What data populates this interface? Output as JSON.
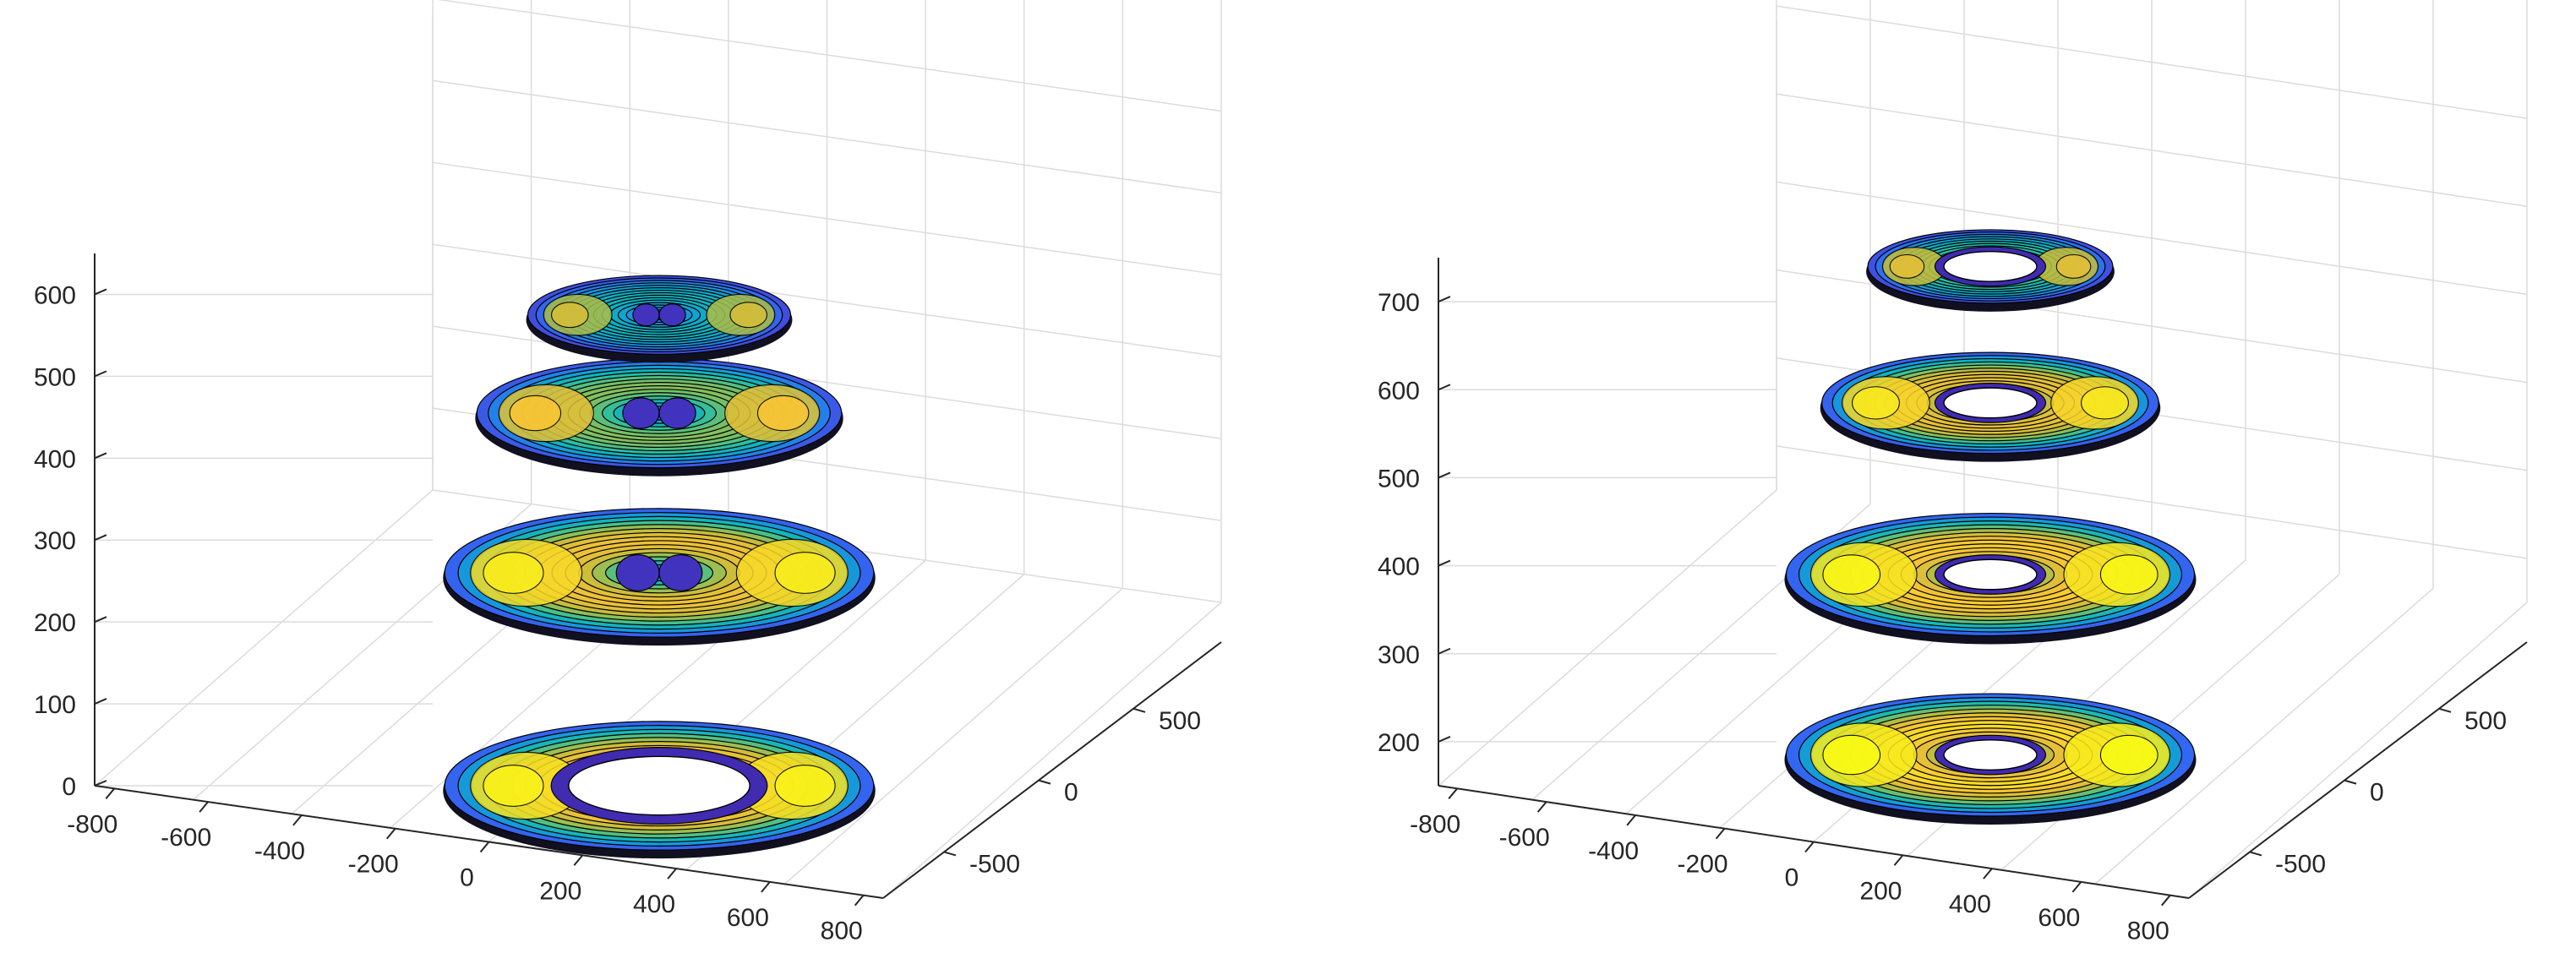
{
  "figure": {
    "background": "#ffffff",
    "colormap": "parula",
    "colors": {
      "contour_line": "#000000",
      "axis_line": "#262626",
      "grid_line": "#dcdcdc",
      "parula_stops": [
        "#3e26a8",
        "#4743d8",
        "#2f6cf5",
        "#1895dc",
        "#0ab0c6",
        "#2dbf9f",
        "#7cbf63",
        "#c8bc3a",
        "#f7c237",
        "#f9fb15"
      ]
    }
  },
  "chart_data": [
    {
      "type": "contour3d",
      "panel": "left",
      "grid": true,
      "xlim": [
        -800,
        800
      ],
      "ylim": [
        -800,
        800
      ],
      "zlim": [
        0,
        650
      ],
      "x_ticks": [
        "-800",
        "-600",
        "-400",
        "-200",
        "0",
        "200",
        "400",
        "600",
        "800"
      ],
      "y_ticks": [
        "-500",
        "0",
        "500"
      ],
      "z_ticks": [
        "0",
        "100",
        "200",
        "300",
        "400",
        "500",
        "600"
      ],
      "layers": [
        {
          "z": 0,
          "outer_radius": 800,
          "inner_radius": 260,
          "hole_shape": "open-circle",
          "peak_level": 0.95
        },
        {
          "z": 260,
          "outer_radius": 800,
          "inner_radius": 0,
          "hole_shape": "point-dipole",
          "peak_level": 0.92
        },
        {
          "z": 455,
          "outer_radius": 680,
          "inner_radius": 0,
          "hole_shape": "point-dipole",
          "peak_level": 0.7
        },
        {
          "z": 575,
          "outer_radius": 490,
          "inner_radius": 0,
          "hole_shape": "point-dipole",
          "peak_level": 0.45
        }
      ]
    },
    {
      "type": "contour3d",
      "panel": "right",
      "grid": true,
      "xlim": [
        -800,
        800
      ],
      "ylim": [
        -800,
        800
      ],
      "zlim": [
        150,
        750
      ],
      "x_ticks": [
        "-800",
        "-600",
        "-400",
        "-200",
        "0",
        "200",
        "400",
        "600",
        "800"
      ],
      "y_ticks": [
        "-500",
        "0",
        "500"
      ],
      "z_ticks": [
        "200",
        "300",
        "400",
        "500",
        "600",
        "700"
      ],
      "layers": [
        {
          "z": 185,
          "outer_radius": 800,
          "inner_radius": 140,
          "hole_shape": "open-circle",
          "peak_level": 1.0
        },
        {
          "z": 390,
          "outer_radius": 800,
          "inner_radius": 140,
          "hole_shape": "open-circle",
          "peak_level": 0.97
        },
        {
          "z": 585,
          "outer_radius": 660,
          "inner_radius": 140,
          "hole_shape": "open-circle",
          "peak_level": 0.9
        },
        {
          "z": 740,
          "outer_radius": 480,
          "inner_radius": 140,
          "hole_shape": "open-circle",
          "peak_level": 0.55
        }
      ]
    }
  ]
}
